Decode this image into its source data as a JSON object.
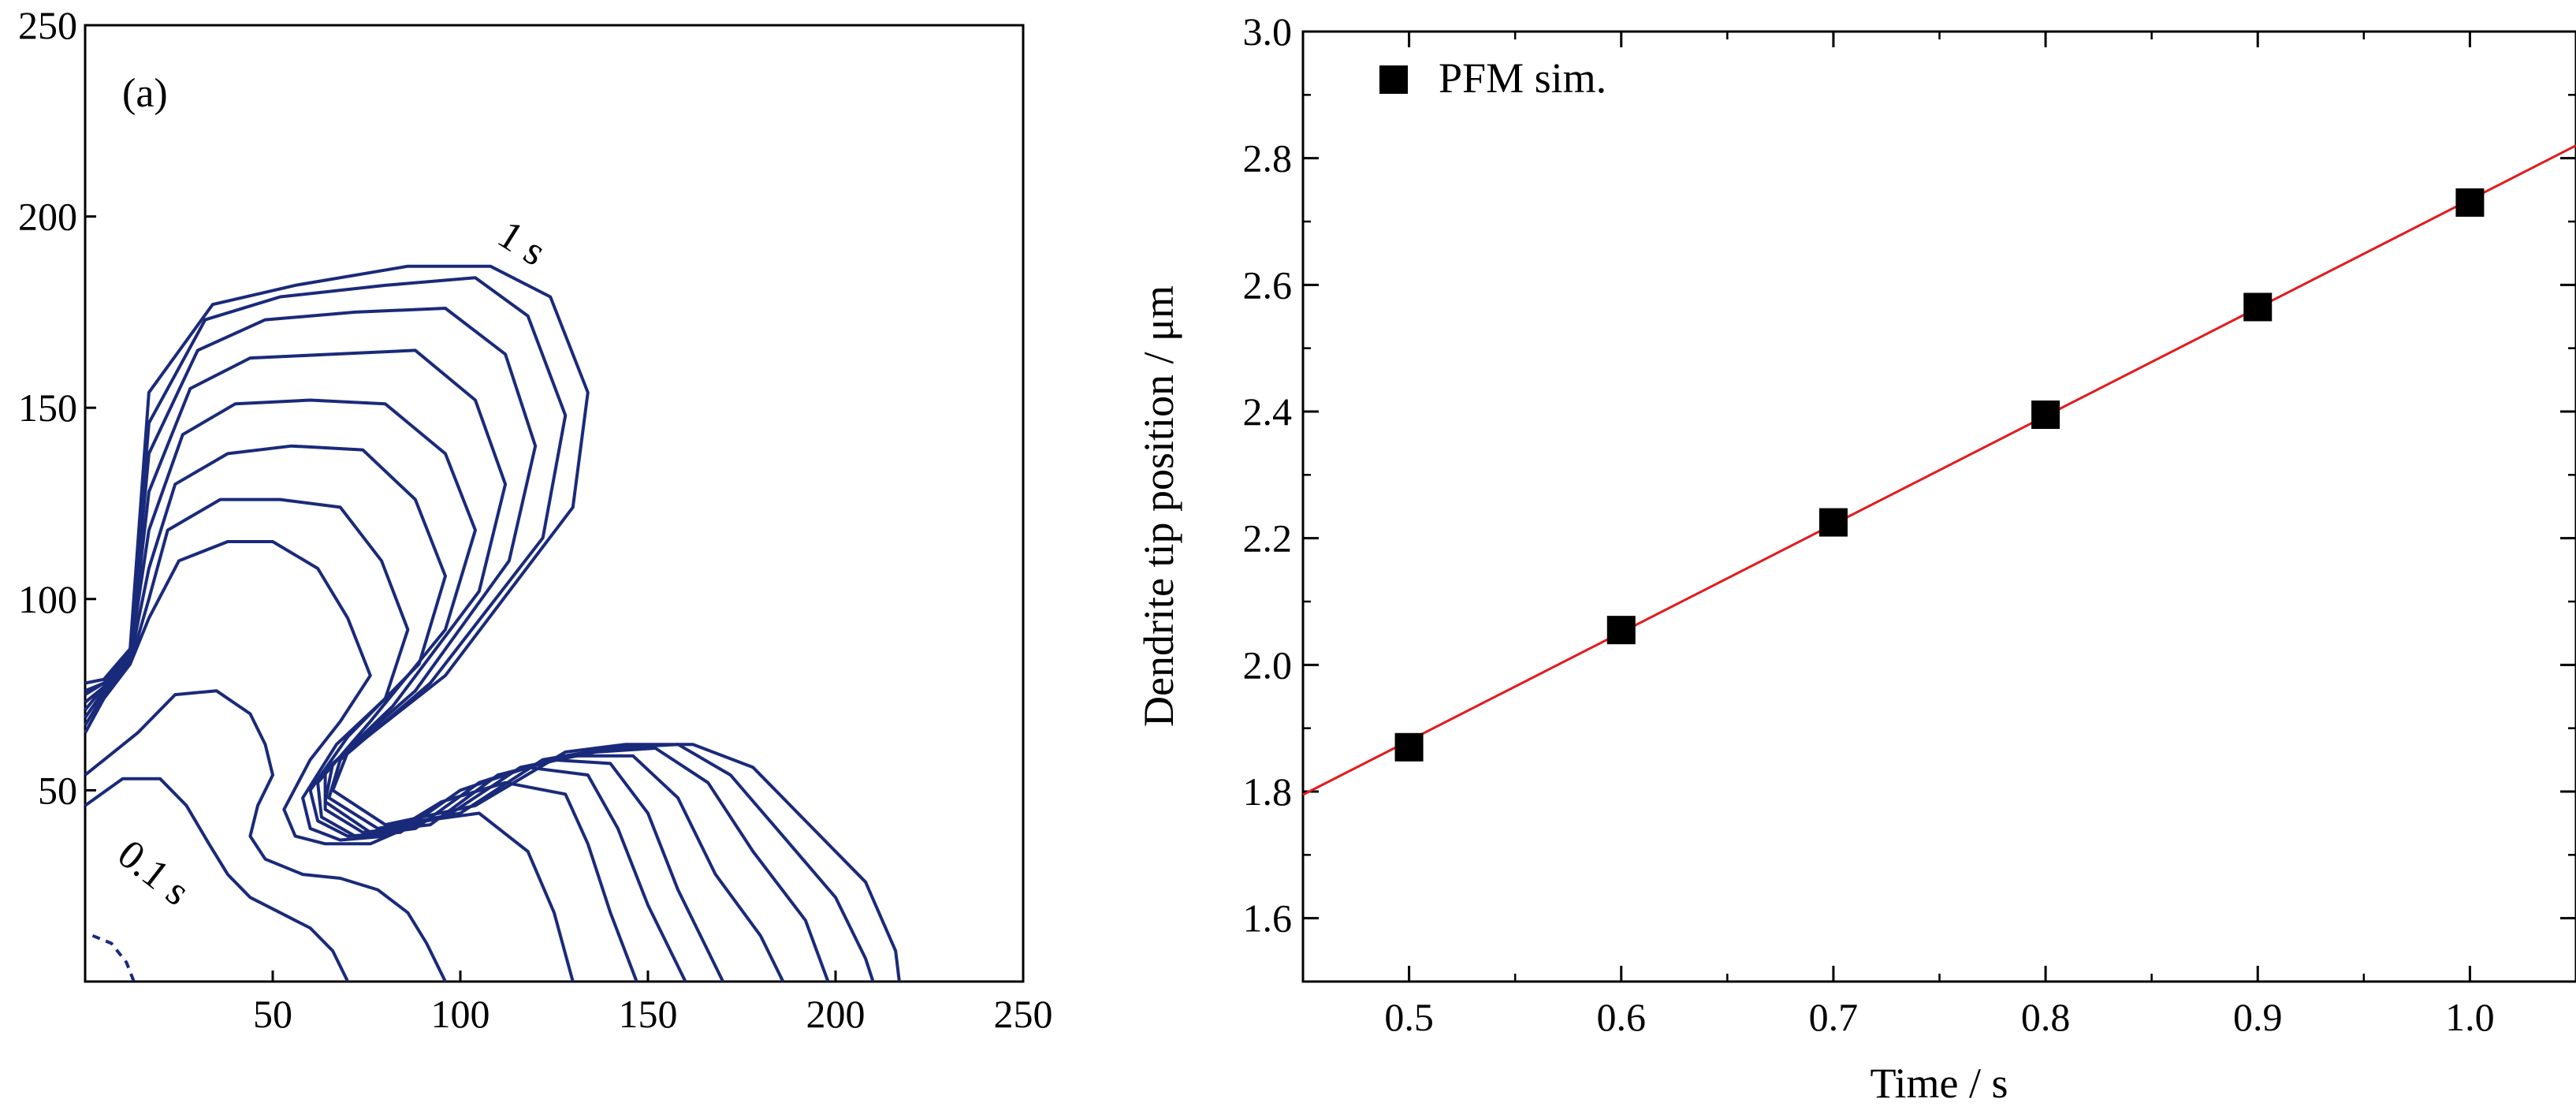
{
  "chart_data": [
    {
      "type": "contour",
      "panel_label": "(a)",
      "xlim": [
        0,
        250
      ],
      "ylim": [
        0,
        250
      ],
      "xticks": [
        50,
        100,
        150,
        200,
        250
      ],
      "yticks": [
        50,
        100,
        150,
        200,
        250
      ],
      "xtick_labels": [
        "50",
        "100",
        "150",
        "200",
        "250"
      ],
      "ytick_labels": [
        "50",
        "100",
        "150",
        "200",
        "250"
      ],
      "annotations": [
        "0.1 s",
        "1 s"
      ],
      "line_color": "#1a2a7a",
      "series": [
        {
          "time": 0.1,
          "points": [
            [
              0,
              46
            ],
            [
              10,
              53
            ],
            [
              20,
              53
            ],
            [
              27,
              46
            ],
            [
              33,
              36
            ],
            [
              38,
              28
            ],
            [
              44,
              22
            ],
            [
              52,
              18
            ],
            [
              60,
              14
            ],
            [
              66,
              8
            ],
            [
              70,
              0
            ]
          ]
        },
        {
          "time": 0.2,
          "points": [
            [
              0,
              54
            ],
            [
              14,
              65
            ],
            [
              24,
              75
            ],
            [
              35,
              76
            ],
            [
              44,
              70
            ],
            [
              48,
              62
            ],
            [
              50,
              54
            ],
            [
              46,
              46
            ],
            [
              44,
              38
            ],
            [
              48,
              32
            ],
            [
              58,
              28
            ],
            [
              68,
              27
            ],
            [
              78,
              24
            ],
            [
              86,
              18
            ],
            [
              91,
              10
            ],
            [
              96,
              0
            ]
          ]
        },
        {
          "time": 0.3,
          "points": [
            [
              0,
              65
            ],
            [
              5,
              74
            ],
            [
              12,
              83
            ],
            [
              17,
              95
            ],
            [
              25,
              110
            ],
            [
              38,
              115
            ],
            [
              50,
              115
            ],
            [
              62,
              108
            ],
            [
              70,
              95
            ],
            [
              76,
              80
            ],
            [
              68,
              68
            ],
            [
              60,
              58
            ],
            [
              53,
              45
            ],
            [
              56,
              38
            ],
            [
              64,
              36
            ],
            [
              76,
              36
            ],
            [
              90,
              42
            ],
            [
              105,
              44
            ],
            [
              118,
              34
            ],
            [
              125,
              18
            ],
            [
              130,
              0
            ]
          ]
        },
        {
          "time": 0.4,
          "points": [
            [
              0,
              67
            ],
            [
              5,
              75
            ],
            [
              12,
              83
            ],
            [
              17,
              100
            ],
            [
              22,
              118
            ],
            [
              36,
              126
            ],
            [
              52,
              126
            ],
            [
              68,
              124
            ],
            [
              79,
              110
            ],
            [
              86,
              92
            ],
            [
              80,
              74
            ],
            [
              67,
              62
            ],
            [
              58,
              48
            ],
            [
              60,
              40
            ],
            [
              68,
              37
            ],
            [
              80,
              38
            ],
            [
              95,
              47
            ],
            [
              112,
              52
            ],
            [
              128,
              49
            ],
            [
              134,
              36
            ],
            [
              140,
              18
            ],
            [
              147,
              0
            ]
          ]
        },
        {
          "time": 0.5,
          "points": [
            [
              0,
              69
            ],
            [
              5,
              76
            ],
            [
              12,
              84
            ],
            [
              17,
              108
            ],
            [
              24,
              130
            ],
            [
              38,
              138
            ],
            [
              55,
              140
            ],
            [
              74,
              139
            ],
            [
              88,
              126
            ],
            [
              96,
              106
            ],
            [
              89,
              83
            ],
            [
              70,
              64
            ],
            [
              60,
              50
            ],
            [
              62,
              42
            ],
            [
              70,
              38
            ],
            [
              84,
              39
            ],
            [
              100,
              50
            ],
            [
              118,
              56
            ],
            [
              134,
              54
            ],
            [
              142,
              40
            ],
            [
              150,
              20
            ],
            [
              160,
              0
            ]
          ]
        },
        {
          "time": 0.6,
          "points": [
            [
              0,
              71
            ],
            [
              5,
              77
            ],
            [
              12,
              85
            ],
            [
              17,
              118
            ],
            [
              26,
              143
            ],
            [
              40,
              151
            ],
            [
              60,
              152
            ],
            [
              80,
              151
            ],
            [
              96,
              138
            ],
            [
              104,
              118
            ],
            [
              96,
              92
            ],
            [
              76,
              68
            ],
            [
              62,
              52
            ],
            [
              63,
              43
            ],
            [
              72,
              38
            ],
            [
              88,
              40
            ],
            [
              105,
              52
            ],
            [
              124,
              58
            ],
            [
              140,
              57
            ],
            [
              150,
              44
            ],
            [
              158,
              24
            ],
            [
              166,
              8
            ],
            [
              170,
              0
            ]
          ]
        },
        {
          "time": 0.7,
          "points": [
            [
              0,
              73
            ],
            [
              5,
              77
            ],
            [
              12,
              85
            ],
            [
              17,
              128
            ],
            [
              28,
              155
            ],
            [
              44,
              163
            ],
            [
              66,
              164
            ],
            [
              88,
              165
            ],
            [
              104,
              152
            ],
            [
              112,
              130
            ],
            [
              105,
              102
            ],
            [
              82,
              72
            ],
            [
              64,
              55
            ],
            [
              64,
              45
            ],
            [
              74,
              39
            ],
            [
              92,
              41
            ],
            [
              110,
              54
            ],
            [
              130,
              59
            ],
            [
              146,
              59
            ],
            [
              158,
              48
            ],
            [
              168,
              28
            ],
            [
              180,
              12
            ],
            [
              186,
              0
            ]
          ]
        },
        {
          "time": 0.8,
          "points": [
            [
              0,
              75
            ],
            [
              5,
              78
            ],
            [
              12,
              86
            ],
            [
              17,
              138
            ],
            [
              30,
              165
            ],
            [
              48,
              173
            ],
            [
              72,
              175
            ],
            [
              96,
              176
            ],
            [
              112,
              164
            ],
            [
              120,
              140
            ],
            [
              113,
              110
            ],
            [
              88,
              76
            ],
            [
              66,
              57
            ],
            [
              64,
              47
            ],
            [
              76,
              39
            ],
            [
              96,
              43
            ],
            [
              116,
              56
            ],
            [
              136,
              60
            ],
            [
              152,
              61
            ],
            [
              166,
              52
            ],
            [
              178,
              34
            ],
            [
              192,
              16
            ],
            [
              198,
              0
            ]
          ]
        },
        {
          "time": 0.9,
          "points": [
            [
              0,
              76
            ],
            [
              5,
              78
            ],
            [
              12,
              86
            ],
            [
              17,
              146
            ],
            [
              32,
              173
            ],
            [
              52,
              179
            ],
            [
              80,
              182
            ],
            [
              104,
              184
            ],
            [
              118,
              174
            ],
            [
              128,
              148
            ],
            [
              122,
              116
            ],
            [
              92,
              78
            ],
            [
              68,
              58
            ],
            [
              65,
              48
            ],
            [
              78,
              40
            ],
            [
              100,
              44
            ],
            [
              122,
              58
            ],
            [
              140,
              61
            ],
            [
              158,
              62
            ],
            [
              172,
              54
            ],
            [
              186,
              38
            ],
            [
              200,
              22
            ],
            [
              208,
              6
            ],
            [
              210,
              0
            ]
          ]
        },
        {
          "time": 1.0,
          "points": [
            [
              0,
              78
            ],
            [
              5,
              79
            ],
            [
              12,
              87
            ],
            [
              17,
              154
            ],
            [
              34,
              177
            ],
            [
              56,
              182
            ],
            [
              86,
              187
            ],
            [
              108,
              187
            ],
            [
              124,
              179
            ],
            [
              134,
              154
            ],
            [
              130,
              124
            ],
            [
              96,
              80
            ],
            [
              70,
              60
            ],
            [
              66,
              50
            ],
            [
              80,
              41
            ],
            [
              104,
              46
            ],
            [
              128,
              60
            ],
            [
              144,
              62
            ],
            [
              162,
              62
            ],
            [
              178,
              56
            ],
            [
              194,
              40
            ],
            [
              208,
              26
            ],
            [
              216,
              8
            ],
            [
              217,
              0
            ]
          ]
        }
      ],
      "extra_fragment": [
        [
          2,
          12
        ],
        [
          7,
          10
        ],
        [
          11,
          5
        ],
        [
          13,
          0
        ]
      ]
    },
    {
      "type": "scatter",
      "xlabel": "Time / s",
      "ylabel": "Dendrite tip position / μm",
      "xlim": [
        0.45,
        1.05
      ],
      "ylim": [
        1.5,
        3.0
      ],
      "xticks": [
        0.5,
        0.6,
        0.7,
        0.8,
        0.9,
        1.0
      ],
      "yticks": [
        1.6,
        1.8,
        2.0,
        2.2,
        2.4,
        2.6,
        2.8,
        3.0
      ],
      "xtick_labels": [
        "0.5",
        "0.6",
        "0.7",
        "0.8",
        "0.9",
        "1.0"
      ],
      "ytick_labels": [
        "1.6",
        "1.8",
        "2.0",
        "2.2",
        "2.4",
        "2.6",
        "2.8",
        "3.0"
      ],
      "legend": {
        "label": "PFM sim.",
        "placement": "top-left"
      },
      "series": [
        {
          "name": "PFM sim.",
          "marker": "square",
          "color": "#000000",
          "x": [
            0.5,
            0.6,
            0.7,
            0.8,
            0.9,
            1.0
          ],
          "y": [
            1.87,
            2.055,
            2.225,
            2.395,
            2.565,
            2.73
          ]
        }
      ],
      "fit_line": {
        "color": "#e31a1c",
        "x": [
          0.45,
          1.05
        ],
        "y": [
          1.795,
          2.82
        ]
      }
    }
  ]
}
